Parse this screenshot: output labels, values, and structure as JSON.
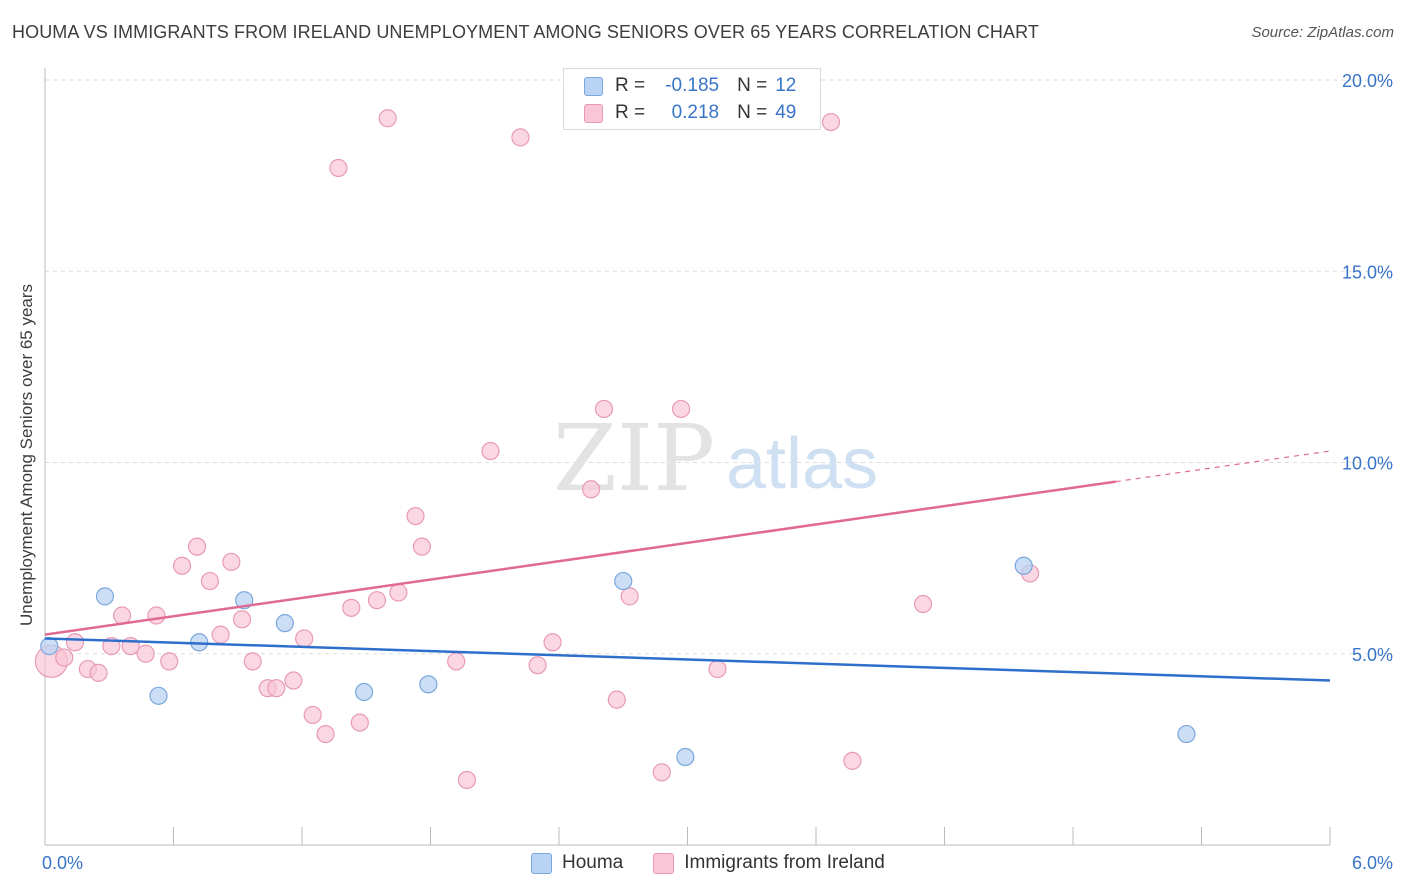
{
  "header": {
    "title": "HOUMA VS IMMIGRANTS FROM IRELAND UNEMPLOYMENT AMONG SENIORS OVER 65 YEARS CORRELATION CHART",
    "source": "Source: ZipAtlas.com"
  },
  "watermark": {
    "zip": "ZIP",
    "atlas": "atlas"
  },
  "legend": {
    "houma": {
      "r_label": "R =",
      "r_value": "-0.185",
      "n_label": "N =",
      "n_value": "12"
    },
    "ireland": {
      "r_label": "R =",
      "r_value": "0.218",
      "n_label": "N =",
      "n_value": "49"
    }
  },
  "chart_data": {
    "type": "scatter",
    "title": "HOUMA VS IMMIGRANTS FROM IRELAND UNEMPLOYMENT AMONG SENIORS OVER 65 YEARS CORRELATION CHART",
    "xlabel": "",
    "ylabel": "Unemployment Among Seniors over 65 years",
    "xlim": [
      0,
      6.0
    ],
    "ylim": [
      0,
      20.0
    ],
    "x_tick_labels": [
      "0.0%",
      "6.0%"
    ],
    "y_tick_labels": [
      "5.0%",
      "10.0%",
      "15.0%",
      "20.0%"
    ],
    "y_ticks": [
      5,
      10,
      15,
      20
    ],
    "colors": {
      "houma_fill": "#b9d3f2",
      "houma_stroke": "#7aa7dc",
      "houma_line": "#2f6fcc",
      "ireland_fill": "#f8c6d6",
      "ireland_stroke": "#e89ab4",
      "ireland_line": "#e06a93",
      "tick_label": "#3874c8",
      "grid": "#dddddd"
    },
    "series": [
      {
        "name": "Houma",
        "points": [
          [
            0.02,
            5.2
          ],
          [
            0.28,
            6.5
          ],
          [
            0.53,
            3.9
          ],
          [
            0.72,
            5.3
          ],
          [
            0.93,
            6.4
          ],
          [
            1.12,
            5.8
          ],
          [
            1.49,
            4.0
          ],
          [
            1.79,
            4.2
          ],
          [
            2.7,
            6.9
          ],
          [
            2.99,
            2.3
          ],
          [
            4.57,
            7.3
          ],
          [
            5.33,
            2.9
          ]
        ],
        "trend": {
          "x": [
            0.0,
            6.0
          ],
          "y": [
            5.4,
            4.3
          ]
        }
      },
      {
        "name": "Immigrants from Ireland",
        "points": [
          [
            0.03,
            4.8
          ],
          [
            0.09,
            4.9
          ],
          [
            0.14,
            5.3
          ],
          [
            0.2,
            4.6
          ],
          [
            0.25,
            4.5
          ],
          [
            0.31,
            5.2
          ],
          [
            0.36,
            6.0
          ],
          [
            0.4,
            5.2
          ],
          [
            0.47,
            5.0
          ],
          [
            0.52,
            6.0
          ],
          [
            0.58,
            4.8
          ],
          [
            0.64,
            7.3
          ],
          [
            0.71,
            7.8
          ],
          [
            0.77,
            6.9
          ],
          [
            0.82,
            5.5
          ],
          [
            0.87,
            7.4
          ],
          [
            0.92,
            5.9
          ],
          [
            0.97,
            4.8
          ],
          [
            1.04,
            4.1
          ],
          [
            1.08,
            4.1
          ],
          [
            1.16,
            4.3
          ],
          [
            1.21,
            5.4
          ],
          [
            1.25,
            3.4
          ],
          [
            1.31,
            2.9
          ],
          [
            1.37,
            17.7
          ],
          [
            1.43,
            6.2
          ],
          [
            1.47,
            3.2
          ],
          [
            1.55,
            6.4
          ],
          [
            1.6,
            19.0
          ],
          [
            1.65,
            6.6
          ],
          [
            1.73,
            8.6
          ],
          [
            1.76,
            7.8
          ],
          [
            1.92,
            4.8
          ],
          [
            1.97,
            1.7
          ],
          [
            2.08,
            10.3
          ],
          [
            2.22,
            18.5
          ],
          [
            2.3,
            4.7
          ],
          [
            2.37,
            5.3
          ],
          [
            2.55,
            9.3
          ],
          [
            2.61,
            11.4
          ],
          [
            2.67,
            3.8
          ],
          [
            2.73,
            6.5
          ],
          [
            2.88,
            1.9
          ],
          [
            2.97,
            11.4
          ],
          [
            3.14,
            4.6
          ],
          [
            3.67,
            18.9
          ],
          [
            3.77,
            2.2
          ],
          [
            4.1,
            6.3
          ],
          [
            4.6,
            7.1
          ]
        ],
        "trend": {
          "x": [
            0.0,
            5.0
          ],
          "y": [
            5.5,
            9.5
          ]
        },
        "trend_extension": {
          "x": [
            5.0,
            6.0
          ],
          "y": [
            9.5,
            10.3
          ]
        }
      }
    ]
  },
  "bottom_legend": {
    "houma": "Houma",
    "ireland": "Immigrants from Ireland"
  }
}
